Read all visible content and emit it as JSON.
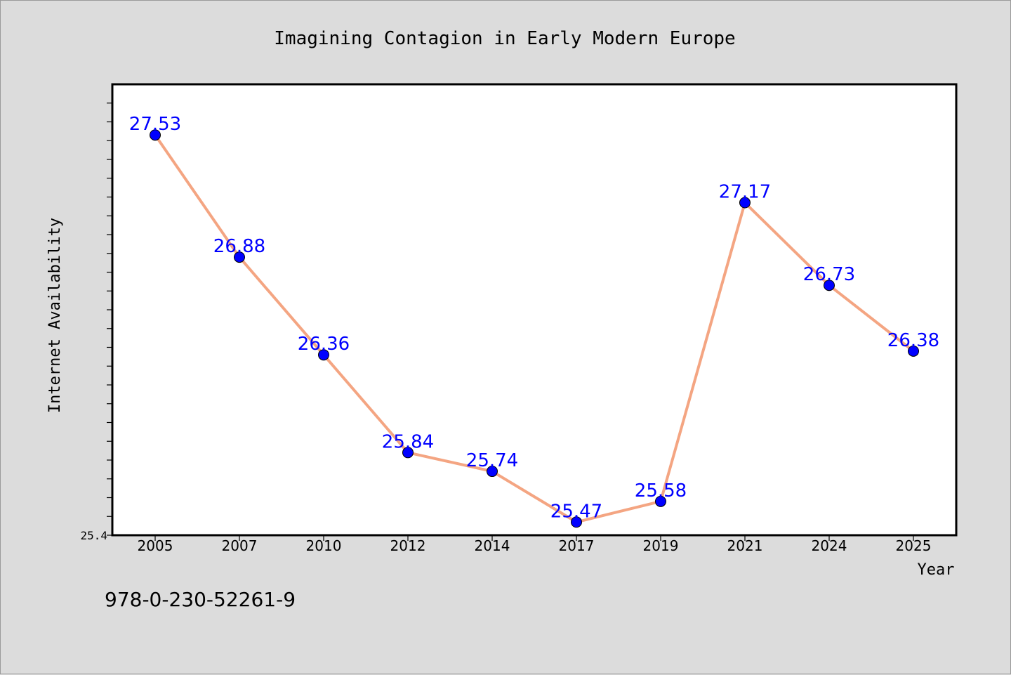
{
  "chart_data": {
    "type": "line",
    "title": "Imagining Contagion in Early Modern Europe",
    "xlabel": "Year",
    "ylabel": "Internet Availability",
    "categories": [
      "2005",
      "2007",
      "2010",
      "2012",
      "2014",
      "2017",
      "2019",
      "2021",
      "2024",
      "2025"
    ],
    "values": [
      27.53,
      26.88,
      26.36,
      25.84,
      25.74,
      25.47,
      25.58,
      27.17,
      26.73,
      26.38
    ],
    "data_labels": [
      "27.53",
      "26.88",
      "26.36",
      "25.84",
      "25.74",
      "25.47",
      "25.58",
      "27.17",
      "26.73",
      "26.38"
    ],
    "ylim": [
      25.4,
      27.8
    ],
    "y_tick_labels": [
      "25.4"
    ],
    "grid": false,
    "legend": "none",
    "line_color": "#f4a582",
    "marker_color": "#0000ff",
    "label_color": "#0000ff"
  },
  "footer_text": "978-0-230-52261-9"
}
